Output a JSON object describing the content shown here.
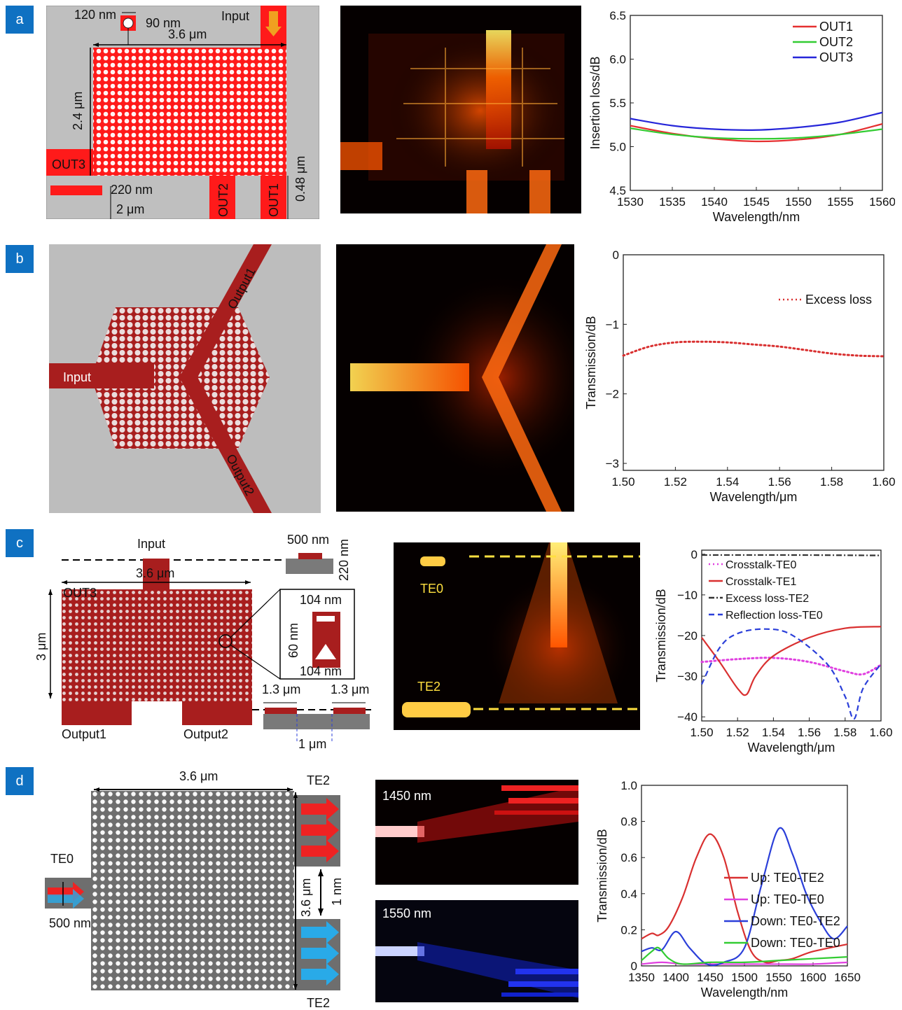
{
  "panels": {
    "a": {
      "tag": "a",
      "schematic": {
        "dims": [
          "120 nm",
          "90 nm",
          "3.6 μm",
          "2.4 μm",
          "220 nm",
          "2 μm",
          "0.48 μm"
        ],
        "ports": [
          "Input",
          "OUT1",
          "OUT2",
          "OUT3"
        ]
      }
    },
    "b": {
      "tag": "b",
      "schematic": {
        "ports": [
          "Input",
          "Output1",
          "Output2"
        ]
      }
    },
    "c": {
      "tag": "c",
      "schematic": {
        "dims": [
          "500 nm",
          "220 nm",
          "3.6 μm",
          "3 μm",
          "104 nm",
          "60 nm",
          "104 nm",
          "1.3 μm",
          "1.3 μm",
          "1 μm"
        ],
        "ports": [
          "Input",
          "OUT3",
          "Output1",
          "Output2"
        ]
      },
      "field": {
        "labels": [
          "TE0",
          "TE2"
        ]
      }
    },
    "d": {
      "tag": "d",
      "schematic": {
        "dims": [
          "3.6 μm",
          "3.6 μm",
          "1 nm",
          "500 nm"
        ],
        "modes": [
          "TE2",
          "TE0",
          "TE2"
        ]
      },
      "field": {
        "labels": [
          "1450 nm",
          "1550 nm"
        ]
      }
    }
  },
  "chart_data": [
    {
      "type": "line",
      "xlabel": "Wavelength/nm",
      "ylabel": "Insertion loss/dB",
      "xlim": [
        1530,
        1560
      ],
      "ylim": [
        4.5,
        6.5
      ],
      "xticks": [
        "1530",
        "1535",
        "1540",
        "1545",
        "1550",
        "1555",
        "1560"
      ],
      "yticks": [
        "4.5",
        "5.0",
        "5.5",
        "6.0",
        "6.5"
      ],
      "legend": "top-right",
      "series": [
        {
          "name": "OUT1",
          "color": "#e53030",
          "x": [
            1530,
            1535,
            1540,
            1545,
            1550,
            1555,
            1560
          ],
          "y": [
            5.24,
            5.15,
            5.09,
            5.06,
            5.08,
            5.14,
            5.26
          ]
        },
        {
          "name": "OUT2",
          "color": "#33cc33",
          "x": [
            1530,
            1535,
            1540,
            1545,
            1550,
            1555,
            1560
          ],
          "y": [
            5.21,
            5.14,
            5.1,
            5.09,
            5.1,
            5.14,
            5.2
          ]
        },
        {
          "name": "OUT3",
          "color": "#2626d9",
          "x": [
            1530,
            1535,
            1540,
            1545,
            1550,
            1555,
            1560
          ],
          "y": [
            5.32,
            5.24,
            5.2,
            5.19,
            5.22,
            5.28,
            5.39
          ]
        }
      ]
    },
    {
      "type": "line",
      "xlabel": "Wavelength/μm",
      "ylabel": "Transmission/dB",
      "xlim": [
        1.5,
        1.6
      ],
      "ylim": [
        -3.1,
        0
      ],
      "xticks": [
        "1.50",
        "1.52",
        "1.54",
        "1.56",
        "1.58",
        "1.60"
      ],
      "yticks": [
        "0",
        "−1",
        "−2",
        "−3"
      ],
      "legend": "top-right",
      "series": [
        {
          "name": "Excess loss",
          "color": "#d93030",
          "dash": "dot",
          "x": [
            1.5,
            1.51,
            1.52,
            1.53,
            1.54,
            1.55,
            1.56,
            1.57,
            1.58,
            1.59,
            1.6
          ],
          "y": [
            -1.45,
            -1.32,
            -1.26,
            -1.25,
            -1.26,
            -1.29,
            -1.32,
            -1.37,
            -1.42,
            -1.45,
            -1.46
          ]
        }
      ]
    },
    {
      "type": "line",
      "xlabel": "Wavelength/μm",
      "ylabel": "Transmission/dB",
      "xlim": [
        1.5,
        1.6
      ],
      "ylim": [
        -41,
        1
      ],
      "xticks": [
        "1.50",
        "1.52",
        "1.54",
        "1.56",
        "1.58",
        "1.60"
      ],
      "yticks": [
        "0",
        "−10",
        "−20",
        "−30",
        "−40"
      ],
      "legend": "top-left",
      "series": [
        {
          "name": "Crosstalk-TE0",
          "color": "#e040e0",
          "dash": "dot",
          "x": [
            1.5,
            1.52,
            1.54,
            1.56,
            1.58,
            1.59,
            1.6
          ],
          "y": [
            -26.5,
            -25.8,
            -25.5,
            -26.5,
            -28.8,
            -29.5,
            -27.2
          ]
        },
        {
          "name": "Crosstalk-TE1",
          "color": "#d93030",
          "x": [
            1.5,
            1.51,
            1.52,
            1.525,
            1.53,
            1.54,
            1.56,
            1.58,
            1.6
          ],
          "y": [
            -20.5,
            -26.5,
            -33,
            -34.5,
            -30,
            -25,
            -20.5,
            -18.2,
            -17.8
          ]
        },
        {
          "name": "Excess loss-TE2",
          "color": "#333333",
          "dash": "dashdot",
          "x": [
            1.5,
            1.55,
            1.6
          ],
          "y": [
            -0.2,
            -0.2,
            -0.3
          ]
        },
        {
          "name": "Reflection loss-TE0",
          "color": "#2b3fd9",
          "dash": "dash",
          "x": [
            1.5,
            1.51,
            1.52,
            1.535,
            1.55,
            1.57,
            1.58,
            1.585,
            1.59,
            1.6
          ],
          "y": [
            -32,
            -23,
            -19.5,
            -18.4,
            -19.8,
            -27,
            -35,
            -40.5,
            -33,
            -27
          ]
        }
      ]
    },
    {
      "type": "line",
      "xlabel": "Wavelength/nm",
      "ylabel": "Transmission/dB",
      "xlim": [
        1350,
        1650
      ],
      "ylim": [
        0,
        1.0
      ],
      "xticks": [
        "1350",
        "1400",
        "1450",
        "1500",
        "1550",
        "1600",
        "1650"
      ],
      "yticks": [
        "0",
        "0.2",
        "0.4",
        "0.6",
        "0.8",
        "1.0"
      ],
      "legend": "bottom-right",
      "series": [
        {
          "name": "Up: TE0-TE2",
          "color": "#d93030",
          "x": [
            1350,
            1365,
            1375,
            1390,
            1410,
            1430,
            1450,
            1470,
            1490,
            1510,
            1530,
            1550,
            1570,
            1600,
            1650
          ],
          "y": [
            0.15,
            0.18,
            0.17,
            0.22,
            0.38,
            0.6,
            0.73,
            0.6,
            0.3,
            0.08,
            0.02,
            0.03,
            0.04,
            0.08,
            0.12
          ]
        },
        {
          "name": "Up: TE0-TE0",
          "color": "#e040e0",
          "x": [
            1350,
            1380,
            1410,
            1450,
            1500,
            1550,
            1600,
            1650
          ],
          "y": [
            0.01,
            0.02,
            0.01,
            0.01,
            0.01,
            0.01,
            0.01,
            0.02
          ]
        },
        {
          "name": "Down: TE0-TE2",
          "color": "#2b3fd9",
          "x": [
            1350,
            1365,
            1380,
            1400,
            1420,
            1445,
            1470,
            1500,
            1525,
            1550,
            1570,
            1590,
            1610,
            1630,
            1650
          ],
          "y": [
            0.08,
            0.1,
            0.09,
            0.19,
            0.1,
            0.01,
            0.02,
            0.1,
            0.45,
            0.76,
            0.62,
            0.4,
            0.25,
            0.15,
            0.22
          ]
        },
        {
          "name": "Down: TE0-TE0",
          "color": "#33cc33",
          "x": [
            1350,
            1365,
            1375,
            1390,
            1410,
            1450,
            1500,
            1550,
            1600,
            1650
          ],
          "y": [
            0.03,
            0.08,
            0.1,
            0.04,
            0.01,
            0.02,
            0.02,
            0.03,
            0.04,
            0.05
          ]
        }
      ]
    }
  ]
}
